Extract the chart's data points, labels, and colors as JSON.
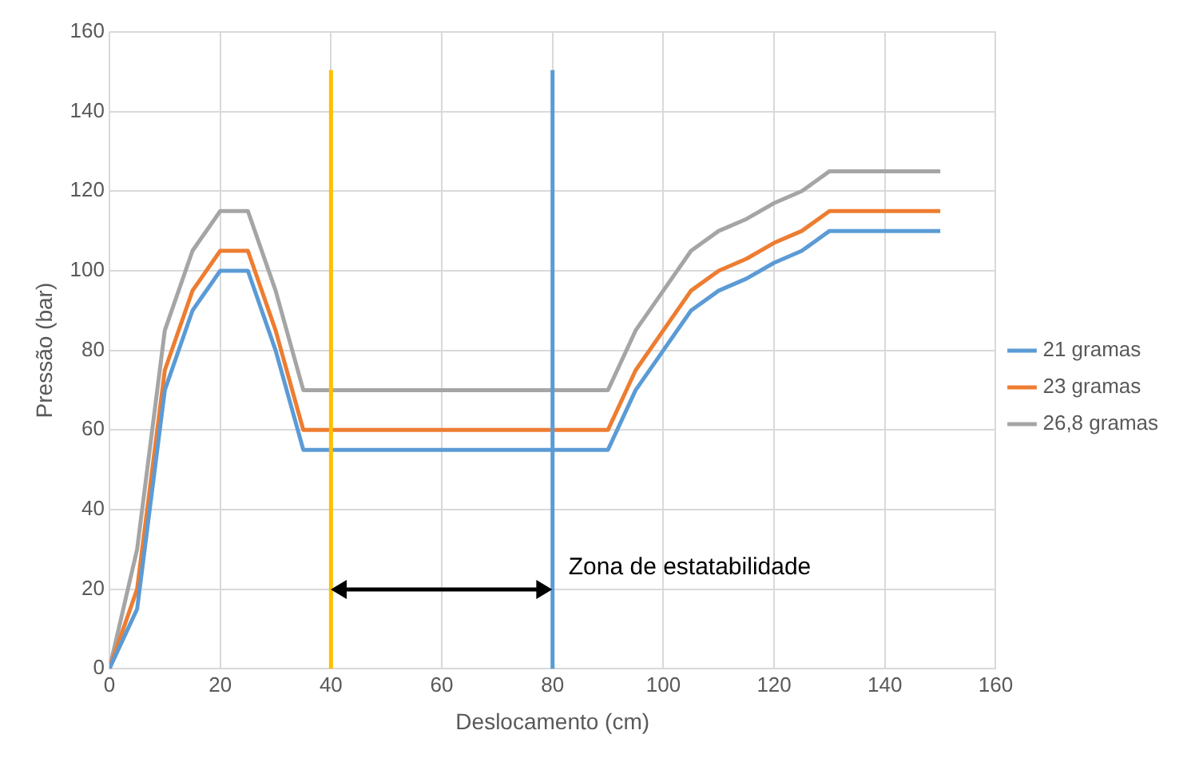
{
  "chart_data": {
    "type": "line",
    "xlabel": "Deslocamento (cm)",
    "ylabel": "Pressão (bar)",
    "x": [
      0,
      5,
      10,
      15,
      20,
      25,
      30,
      35,
      40,
      45,
      50,
      55,
      60,
      65,
      70,
      75,
      80,
      85,
      90,
      95,
      100,
      105,
      110,
      115,
      120,
      125,
      130,
      135,
      140,
      145,
      150
    ],
    "series": [
      {
        "name": "21 gramas",
        "color": "#5b9bd5",
        "values": [
          0,
          15,
          70,
          90,
          100,
          100,
          80,
          55,
          55,
          55,
          55,
          55,
          55,
          55,
          55,
          55,
          55,
          55,
          55,
          70,
          80,
          90,
          95,
          98,
          102,
          105,
          110,
          110,
          110,
          110,
          110
        ]
      },
      {
        "name": "23 gramas",
        "color": "#ed7d31",
        "values": [
          0,
          20,
          75,
          95,
          105,
          105,
          85,
          60,
          60,
          60,
          60,
          60,
          60,
          60,
          60,
          60,
          60,
          60,
          60,
          75,
          85,
          95,
          100,
          103,
          107,
          110,
          115,
          115,
          115,
          115,
          115
        ]
      },
      {
        "name": "26,8 gramas",
        "color": "#a5a5a5",
        "values": [
          0,
          30,
          85,
          105,
          115,
          115,
          95,
          70,
          70,
          70,
          70,
          70,
          70,
          70,
          70,
          70,
          70,
          70,
          70,
          85,
          95,
          105,
          110,
          113,
          117,
          120,
          125,
          125,
          125,
          125,
          125
        ]
      }
    ],
    "xlim": [
      0,
      160
    ],
    "xticks": [
      0,
      20,
      40,
      60,
      80,
      100,
      120,
      140,
      160
    ],
    "ylim": [
      0,
      160
    ],
    "yticks": [
      0,
      20,
      40,
      60,
      80,
      100,
      120,
      140,
      160
    ],
    "ref_lines": [
      {
        "axis": "x",
        "value": 40,
        "color": "#ffc000"
      },
      {
        "axis": "x",
        "value": 80,
        "color": "#5b9bd5"
      }
    ],
    "annotations": [
      "Zona de estatabilidade"
    ],
    "grid": true,
    "legend": "right",
    "marker": "none",
    "line_style": "solid"
  }
}
